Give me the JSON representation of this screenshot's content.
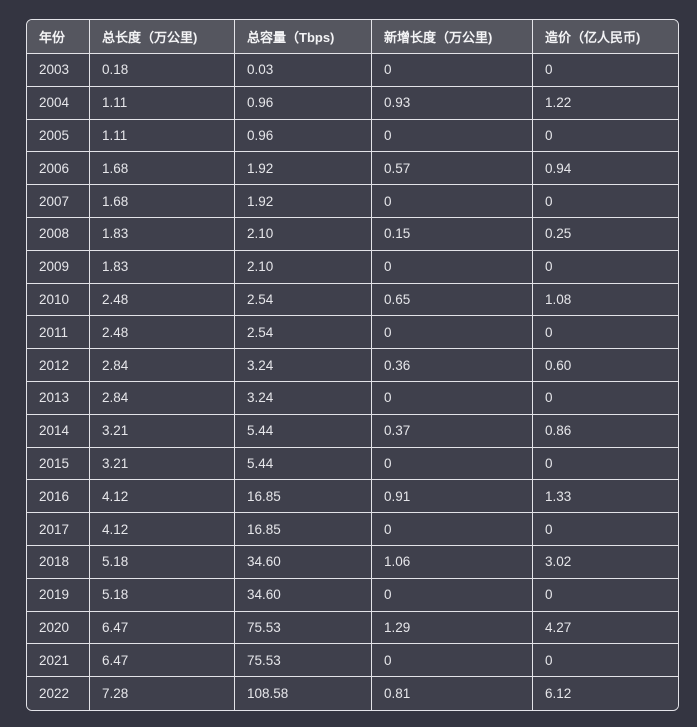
{
  "table": {
    "headers": [
      "年份",
      "总长度（万公里)",
      "总容量（Tbps)",
      "新增长度（万公里)",
      "造价（亿人民币)"
    ],
    "rows": [
      [
        "2003",
        "0.18",
        "0.03",
        "0",
        "0"
      ],
      [
        "2004",
        "1.11",
        "0.96",
        "0.93",
        "1.22"
      ],
      [
        "2005",
        "1.11",
        "0.96",
        "0",
        "0"
      ],
      [
        "2006",
        "1.68",
        "1.92",
        "0.57",
        "0.94"
      ],
      [
        "2007",
        "1.68",
        "1.92",
        "0",
        "0"
      ],
      [
        "2008",
        "1.83",
        "2.10",
        "0.15",
        "0.25"
      ],
      [
        "2009",
        "1.83",
        "2.10",
        "0",
        "0"
      ],
      [
        "2010",
        "2.48",
        "2.54",
        "0.65",
        "1.08"
      ],
      [
        "2011",
        "2.48",
        "2.54",
        "0",
        "0"
      ],
      [
        "2012",
        "2.84",
        "3.24",
        "0.36",
        "0.60"
      ],
      [
        "2013",
        "2.84",
        "3.24",
        "0",
        "0"
      ],
      [
        "2014",
        "3.21",
        "5.44",
        "0.37",
        "0.86"
      ],
      [
        "2015",
        "3.21",
        "5.44",
        "0",
        "0"
      ],
      [
        "2016",
        "4.12",
        "16.85",
        "0.91",
        "1.33"
      ],
      [
        "2017",
        "4.12",
        "16.85",
        "0",
        "0"
      ],
      [
        "2018",
        "5.18",
        "34.60",
        "1.06",
        "3.02"
      ],
      [
        "2019",
        "5.18",
        "34.60",
        "0",
        "0"
      ],
      [
        "2020",
        "6.47",
        "75.53",
        "1.29",
        "4.27"
      ],
      [
        "2021",
        "6.47",
        "75.53",
        "0",
        "0"
      ],
      [
        "2022",
        "7.28",
        "108.58",
        "0.81",
        "6.12"
      ]
    ]
  }
}
